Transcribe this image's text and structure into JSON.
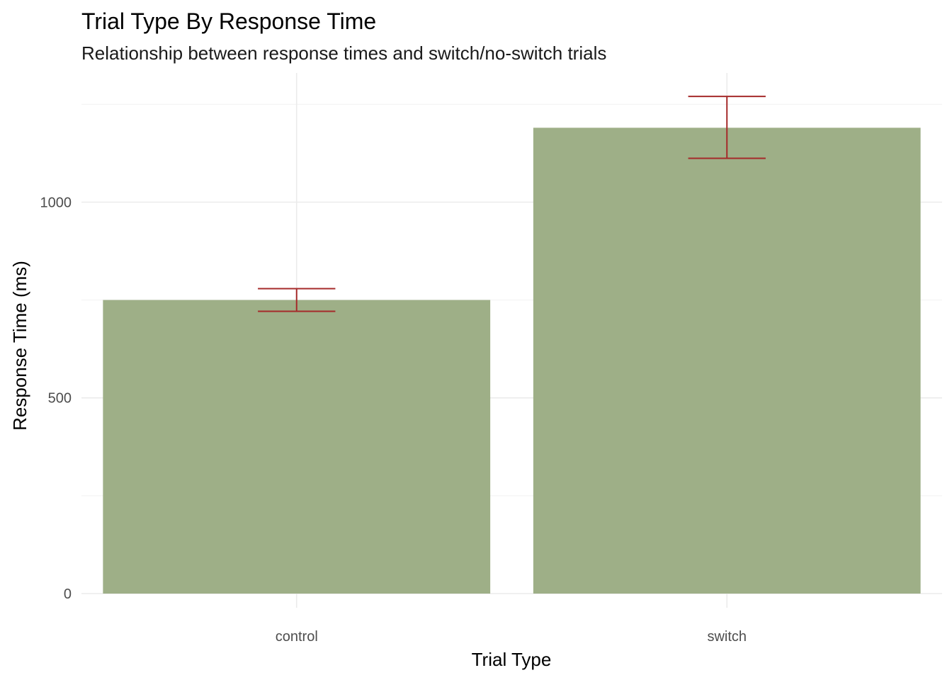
{
  "chart_data": {
    "type": "bar",
    "title": "Trial Type By Response Time",
    "subtitle": "Relationship between response times and switch/no-switch trials",
    "xlabel": "Trial Type",
    "ylabel": "Response Time (ms)",
    "categories": [
      "control",
      "switch"
    ],
    "values": [
      750,
      1190
    ],
    "error_bars": [
      {
        "category": "control",
        "low": 721,
        "high": 779
      },
      {
        "category": "switch",
        "low": 1112,
        "high": 1270
      }
    ],
    "yticks": [
      0,
      500,
      1000
    ],
    "ytick_labels": [
      "0",
      "500",
      "1000"
    ],
    "ylim": [
      0,
      1330
    ],
    "grid": true,
    "legend": "none",
    "colors": {
      "bar": "#9eaf87",
      "error_bar": "#a52a2a",
      "grid": "#ebebeb"
    }
  }
}
